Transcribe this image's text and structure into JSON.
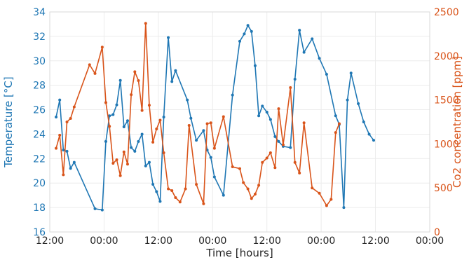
{
  "chart_data": {
    "type": "line",
    "title": "",
    "xlabel": "Time [hours]",
    "ylabel_left": "Temperature [°C]",
    "ylabel_right": "Co2 concentration [ppm]",
    "xlim": [
      0,
      420
    ],
    "xticks": [
      {
        "x": 0,
        "label": "12:00"
      },
      {
        "x": 60,
        "label": "00:00"
      },
      {
        "x": 120,
        "label": "12:00"
      },
      {
        "x": 180,
        "label": "00:00"
      },
      {
        "x": 240,
        "label": "12:00"
      },
      {
        "x": 300,
        "label": "00:00"
      },
      {
        "x": 360,
        "label": "12:00"
      },
      {
        "x": 420,
        "label": "00:00"
      }
    ],
    "ylim_left": [
      16,
      34
    ],
    "yticks_left": [
      16,
      18,
      20,
      22,
      24,
      26,
      28,
      30,
      32,
      34
    ],
    "ylim_right": [
      0,
      2500
    ],
    "yticks_right": [
      0,
      500,
      1000,
      1500,
      2000,
      2500
    ],
    "grid": true,
    "colors": {
      "temperature": "#1f77b4",
      "co2": "#d9541a"
    },
    "series": [
      {
        "axis": "left",
        "color": "#1f77b4",
        "x": [
          7,
          11,
          15,
          19,
          23,
          27,
          50,
          58,
          62,
          66,
          70,
          74,
          78,
          82,
          86,
          90,
          94,
          98,
          102,
          106,
          110,
          114,
          118,
          122,
          126,
          131,
          135,
          139,
          152,
          156,
          162,
          170,
          174,
          178,
          182,
          192,
          202,
          210,
          215,
          219,
          223,
          227,
          231,
          235,
          240,
          244,
          249,
          253,
          258,
          266,
          271,
          276,
          281,
          290,
          298,
          306,
          316,
          320,
          325,
          329,
          333,
          341,
          347,
          353,
          358
        ],
        "y": [
          25.4,
          26.8,
          22.7,
          22.6,
          21.2,
          21.7,
          17.9,
          17.8,
          23.4,
          25.5,
          25.6,
          26.4,
          28.4,
          24.6,
          25.1,
          22.9,
          22.6,
          23.4,
          24.0,
          21.4,
          21.7,
          19.9,
          19.3,
          18.5,
          25.4,
          31.9,
          28.3,
          29.2,
          26.8,
          25.3,
          23.5,
          24.3,
          22.7,
          22.1,
          20.5,
          19.0,
          27.2,
          31.6,
          32.2,
          32.9,
          32.4,
          29.6,
          25.5,
          26.3,
          25.8,
          25.2,
          23.8,
          23.4,
          23.0,
          22.9,
          28.5,
          32.5,
          30.7,
          31.8,
          30.2,
          28.9,
          25.5,
          24.8,
          18.0,
          26.8,
          29.0,
          26.5,
          25.0,
          24.0,
          23.5
        ]
      },
      {
        "axis": "right",
        "color": "#d9541a",
        "x": [
          7,
          11,
          15,
          19,
          23,
          27,
          44,
          50,
          58,
          62,
          66,
          70,
          74,
          78,
          82,
          86,
          90,
          94,
          98,
          102,
          106,
          110,
          114,
          118,
          122,
          126,
          131,
          135,
          139,
          144,
          150,
          154,
          162,
          170,
          174,
          178,
          182,
          192,
          202,
          210,
          214,
          219,
          223,
          227,
          231,
          235,
          240,
          244,
          249,
          253,
          258,
          266,
          271,
          276,
          281,
          290,
          298,
          306,
          311,
          316,
          320
        ],
        "y": [
          950,
          1100,
          650,
          1250,
          1290,
          1420,
          1900,
          1800,
          2100,
          1470,
          1200,
          780,
          820,
          640,
          910,
          770,
          1560,
          1820,
          1720,
          1380,
          2370,
          1440,
          1020,
          1170,
          1270,
          900,
          490,
          470,
          390,
          340,
          490,
          1210,
          540,
          320,
          1230,
          1240,
          950,
          1310,
          740,
          720,
          560,
          490,
          380,
          430,
          530,
          790,
          840,
          900,
          730,
          1400,
          990,
          1640,
          790,
          670,
          1240,
          500,
          440,
          300,
          370,
          1130,
          1230
        ]
      }
    ]
  }
}
